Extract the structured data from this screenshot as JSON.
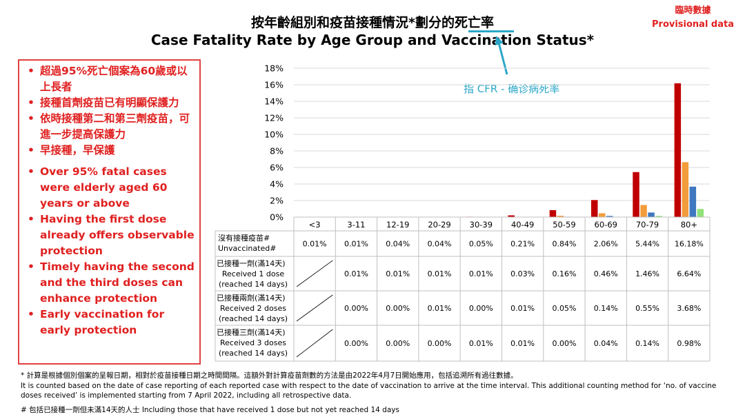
{
  "title_zh": "按年齡組別和疫苗接種情況*劃分的死亡率",
  "title_en": "Case Fatality Rate by Age Group and Vaccination Status*",
  "provisional_zh": "臨時數據",
  "provisional_en": "Provisional data",
  "annotation": "指 CFR - 确诊病死率",
  "bullets_zh": [
    "超過95%死亡個案為60歲或以上長者",
    "接種首劑疫苗已有明顯保護力",
    "依時接種第二和第三劑疫苗，可進一步提高保護力",
    "早接種，早保護"
  ],
  "bullets_en": [
    "Over 95% fatal cases were elderly aged 60 years or above",
    "Having the first dose already offers observable protection",
    "Timely having the second and the third doses can enhance protection",
    "Early vaccination for early protection"
  ],
  "footnote_1_zh": "* 計算是根據個別個案的呈報日期，相對於疫苗接種日期之時間間隔。這額外對計算疫苗劑數的方法是由2022年4月7日開始應用，包括追溯所有過往數據。",
  "footnote_1_en_a": "It is counted based on the date of case reporting of each reported case with respect to the date of vaccination to arrive at the time interval.  This additional counting method for ‘no. of vaccine",
  "footnote_1_en_b": "doses received’ is implemented starting from 7 April 2022, including all retrospective data.",
  "footnote_2": "# 包括已接種一劑但未滿14天的人士  Including those that have received 1 dose but not yet reached 14 days",
  "colors": {
    "unvaccinated": "#c00000",
    "dose1": "#f39c3c",
    "dose2": "#3f78c0",
    "dose3": "#92e27a",
    "accent": "#2aa7c8",
    "alert": "#e02020"
  },
  "chart_data": {
    "type": "bar",
    "categories": [
      "<3",
      "3-11",
      "12-19",
      "20-29",
      "30-39",
      "40-49",
      "50-59",
      "60-69",
      "70-79",
      "80+"
    ],
    "ylim": [
      0,
      18
    ],
    "yticks": [
      "0%",
      "2%",
      "4%",
      "6%",
      "8%",
      "10%",
      "12%",
      "14%",
      "16%",
      "18%"
    ],
    "grid": true,
    "series": [
      {
        "name": "沒有接種疫苗# Unvaccinated#",
        "name_zh": "沒有接種疫苗#",
        "name_en": "Unvaccinated#",
        "values": [
          0.01,
          0.01,
          0.04,
          0.04,
          0.05,
          0.21,
          0.84,
          2.06,
          5.44,
          16.18
        ],
        "labels": [
          "0.01%",
          "0.01%",
          "0.04%",
          "0.04%",
          "0.05%",
          "0.21%",
          "0.84%",
          "2.06%",
          "5.44%",
          "16.18%"
        ]
      },
      {
        "name": "已接種一劑(滿14天) Received 1 dose (reached 14 days)",
        "name_zh": "已接種一劑(滿14天)",
        "name_en": "Received 1 dose (reached 14 days)",
        "values": [
          null,
          0.01,
          0.01,
          0.01,
          0.01,
          0.03,
          0.16,
          0.46,
          1.46,
          6.64
        ],
        "labels": [
          "",
          "0.01%",
          "0.01%",
          "0.01%",
          "0.01%",
          "0.03%",
          "0.16%",
          "0.46%",
          "1.46%",
          "6.64%"
        ]
      },
      {
        "name": "已接種兩劑(滿14天) Received 2 doses (reached 14 days)",
        "name_zh": "已接種兩劑(滿14天)",
        "name_en": "Received 2 doses (reached 14 days)",
        "values": [
          null,
          0.0,
          0.0,
          0.01,
          0.0,
          0.01,
          0.05,
          0.14,
          0.55,
          3.68
        ],
        "labels": [
          "",
          "0.00%",
          "0.00%",
          "0.01%",
          "0.00%",
          "0.01%",
          "0.05%",
          "0.14%",
          "0.55%",
          "3.68%"
        ]
      },
      {
        "name": "已接種三劑(滿14天) Received 3 doses (reached 14 days)",
        "name_zh": "已接種三劑(滿14天)",
        "name_en": "Received 3 doses (reached 14 days)",
        "values": [
          null,
          0.0,
          0.0,
          0.0,
          0.01,
          0.01,
          0.0,
          0.04,
          0.14,
          0.98
        ],
        "labels": [
          "",
          "0.00%",
          "0.00%",
          "0.00%",
          "0.01%",
          "0.01%",
          "0.00%",
          "0.04%",
          "0.14%",
          "0.98%"
        ]
      }
    ]
  }
}
